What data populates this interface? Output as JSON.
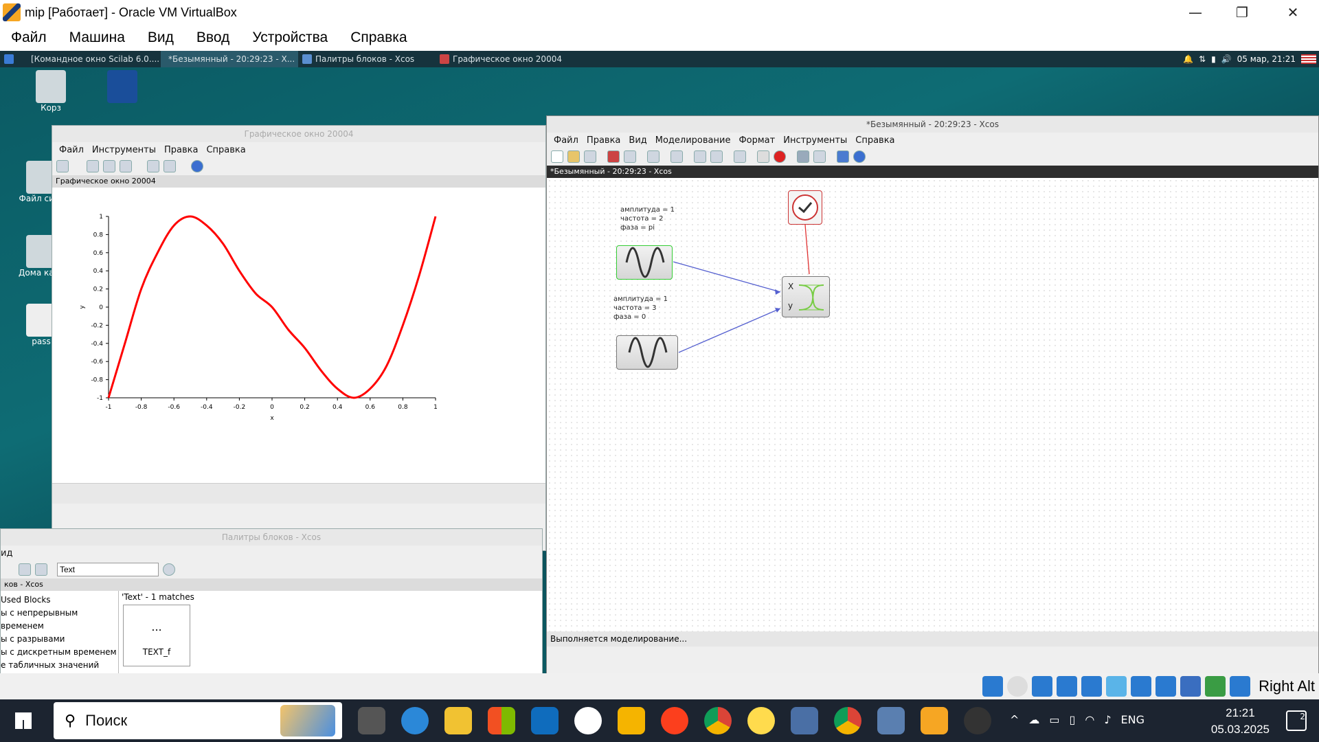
{
  "host": {
    "title": "mip [Работает] - Oracle VM VirtualBox",
    "menu": [
      "Файл",
      "Машина",
      "Вид",
      "Ввод",
      "Устройства",
      "Справка"
    ],
    "right_alt": "Right Alt"
  },
  "guest_panel": {
    "tasks": [
      "[Командное окно Scilab 6.0....",
      "*Безымянный - 20:29:23 - X...",
      "Палитры блоков - Xcos",
      "Графическое окно 20004"
    ],
    "clock": "05 мар, 21:21"
  },
  "desktop_icons": [
    "Корз",
    "Файл сист",
    "Дома ката",
    "pass"
  ],
  "graphic_window": {
    "title": "Графическое окно 20004",
    "menu": [
      "Файл",
      "Инструменты",
      "Правка",
      "Справка"
    ],
    "strip": "Графическое окно 20004"
  },
  "chart_data": {
    "type": "line",
    "title": "",
    "xlabel": "x",
    "ylabel": "y",
    "xlim": [
      -1,
      1
    ],
    "ylim": [
      -1,
      1
    ],
    "xticks": [
      "-1",
      "-0.8",
      "-0.6",
      "-0.4",
      "-0.2",
      "0",
      "0.2",
      "0.4",
      "0.6",
      "0.8",
      "1"
    ],
    "yticks": [
      "1",
      "0.8",
      "0.6",
      "0.4",
      "0.2",
      "0",
      "-0.2",
      "-0.4",
      "-0.6",
      "-0.8",
      "-1"
    ],
    "series": [
      {
        "color": "#ff0000",
        "x": [
          -1,
          -0.9,
          -0.8,
          -0.7,
          -0.6,
          -0.5,
          -0.4,
          -0.3,
          -0.2,
          -0.1,
          0,
          0.1,
          0.2,
          0.3,
          0.4,
          0.5,
          0.6,
          0.7,
          0.8,
          0.9,
          1
        ],
        "y": [
          -1,
          -0.4,
          0.2,
          0.6,
          0.9,
          1,
          0.9,
          0.7,
          0.4,
          0.15,
          0,
          -0.25,
          -0.45,
          -0.7,
          -0.9,
          -1,
          -0.9,
          -0.65,
          -0.2,
          0.35,
          1
        ]
      }
    ]
  },
  "xcos": {
    "title": "*Безымянный - 20:29:23 - Xcos",
    "menu": [
      "Файл",
      "Правка",
      "Вид",
      "Моделирование",
      "Формат",
      "Инструменты",
      "Справка"
    ],
    "strip": "*Безымянный - 20:29:23 - Xcos",
    "block1_lines": [
      "амплитуда = 1",
      "частота = 2",
      "фаза = pi"
    ],
    "block2_lines": [
      "амплитуда = 1",
      "частота = 3",
      "фаза = 0"
    ],
    "scope_x": "X",
    "scope_y": "y",
    "status": "Выполняется моделирование..."
  },
  "palette": {
    "title": "Палитры блоков - Xcos",
    "menu_item": "ид",
    "search_value": "Text",
    "strip": "ков - Xcos",
    "tree": [
      "Used Blocks",
      "ы с непрерывным временем",
      "ы с разрывами",
      "ы с дискретным временем",
      "е табличных значений"
    ],
    "results_header": "'Text' - 1 matches",
    "result_dots": "...",
    "result_label": "TEXT_f"
  },
  "taskbar": {
    "search": "Поиск",
    "lang": "ENG",
    "time": "21:21",
    "date": "05.03.2025",
    "notif": "2"
  }
}
